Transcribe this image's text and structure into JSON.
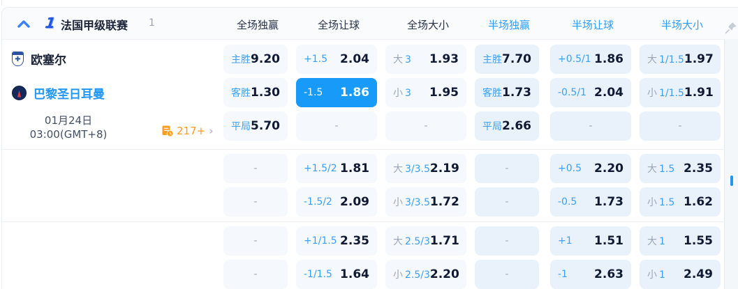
{
  "colors": {
    "accent": "#2e9df7",
    "selected_cell": "#189bf8",
    "odds_text": "#101a33",
    "label_blue": "#3aa0f6",
    "side_gray": "#9aa7b7",
    "markets_orange": "#ff9b1a"
  },
  "header": {
    "league_name": "法国甲级联赛",
    "league_count": "1",
    "league_icon": "ligue1-icon",
    "columns": [
      {
        "label": "全场独赢",
        "accent": false
      },
      {
        "label": "全场让球",
        "accent": false
      },
      {
        "label": "全场大小",
        "accent": false
      },
      {
        "label": "半场独赢",
        "accent": true
      },
      {
        "label": "半场让球",
        "accent": true
      },
      {
        "label": "半场大小",
        "accent": true
      }
    ]
  },
  "match": {
    "home_team": "欧塞尔",
    "away_team": "巴黎圣日耳曼",
    "date_line1": "01月24日",
    "date_line2": "03:00(GMT+8)",
    "markets_count": "217+",
    "home_badge": "auxerre-crest",
    "away_badge": "psg-crest",
    "home_badge_emblem": "✚"
  },
  "odds_rows": [
    {
      "cells": [
        {
          "line": "主胜",
          "odds": "9.20"
        },
        {
          "line": "+1.5",
          "odds": "2.04"
        },
        {
          "side": "大",
          "line": "3",
          "odds": "1.93"
        },
        {
          "line": "主胜",
          "odds": "7.70"
        },
        {
          "line": "+0.5/1",
          "odds": "1.86"
        },
        {
          "side": "大",
          "line": "1/1.5",
          "odds": "1.97"
        }
      ]
    },
    {
      "cells": [
        {
          "line": "客胜",
          "odds": "1.30"
        },
        {
          "line": "-1.5",
          "odds": "1.86",
          "selected": true
        },
        {
          "side": "小",
          "line": "3",
          "odds": "1.95"
        },
        {
          "line": "客胜",
          "odds": "1.73"
        },
        {
          "line": "-0.5/1",
          "odds": "2.04"
        },
        {
          "side": "小",
          "line": "1/1.5",
          "odds": "1.91"
        }
      ]
    },
    {
      "cells": [
        {
          "line": "平局",
          "odds": "5.70"
        },
        {
          "dash": "-"
        },
        {
          "dash": "-"
        },
        {
          "line": "平局",
          "odds": "2.66"
        },
        {
          "dash": "-"
        },
        {
          "dash": "-"
        }
      ]
    },
    {
      "cells": [
        {
          "dash": "-"
        },
        {
          "line": "+1.5/2",
          "odds": "1.81"
        },
        {
          "side": "大",
          "line": "3/3.5",
          "odds": "2.19"
        },
        {
          "dash": "-"
        },
        {
          "line": "+0.5",
          "odds": "2.20"
        },
        {
          "side": "大",
          "line": "1.5",
          "odds": "2.35"
        }
      ]
    },
    {
      "cells": [
        {
          "dash": "-"
        },
        {
          "line": "-1.5/2",
          "odds": "2.09"
        },
        {
          "side": "小",
          "line": "3/3.5",
          "odds": "1.72"
        },
        {
          "dash": "-"
        },
        {
          "line": "-0.5",
          "odds": "1.73"
        },
        {
          "side": "小",
          "line": "1.5",
          "odds": "1.62"
        }
      ]
    },
    {
      "cells": [
        {
          "dash": "-"
        },
        {
          "line": "+1/1.5",
          "odds": "2.35"
        },
        {
          "side": "大",
          "line": "2.5/3",
          "odds": "1.71"
        },
        {
          "dash": "-"
        },
        {
          "line": "+1",
          "odds": "1.51"
        },
        {
          "side": "大",
          "line": "1",
          "odds": "1.55"
        }
      ]
    },
    {
      "cells": [
        {
          "dash": "-"
        },
        {
          "line": "-1/1.5",
          "odds": "1.64"
        },
        {
          "side": "小",
          "line": "2.5/3",
          "odds": "2.20"
        },
        {
          "dash": "-"
        },
        {
          "line": "-1",
          "odds": "2.63"
        },
        {
          "side": "小",
          "line": "1",
          "odds": "2.49"
        }
      ]
    }
  ]
}
